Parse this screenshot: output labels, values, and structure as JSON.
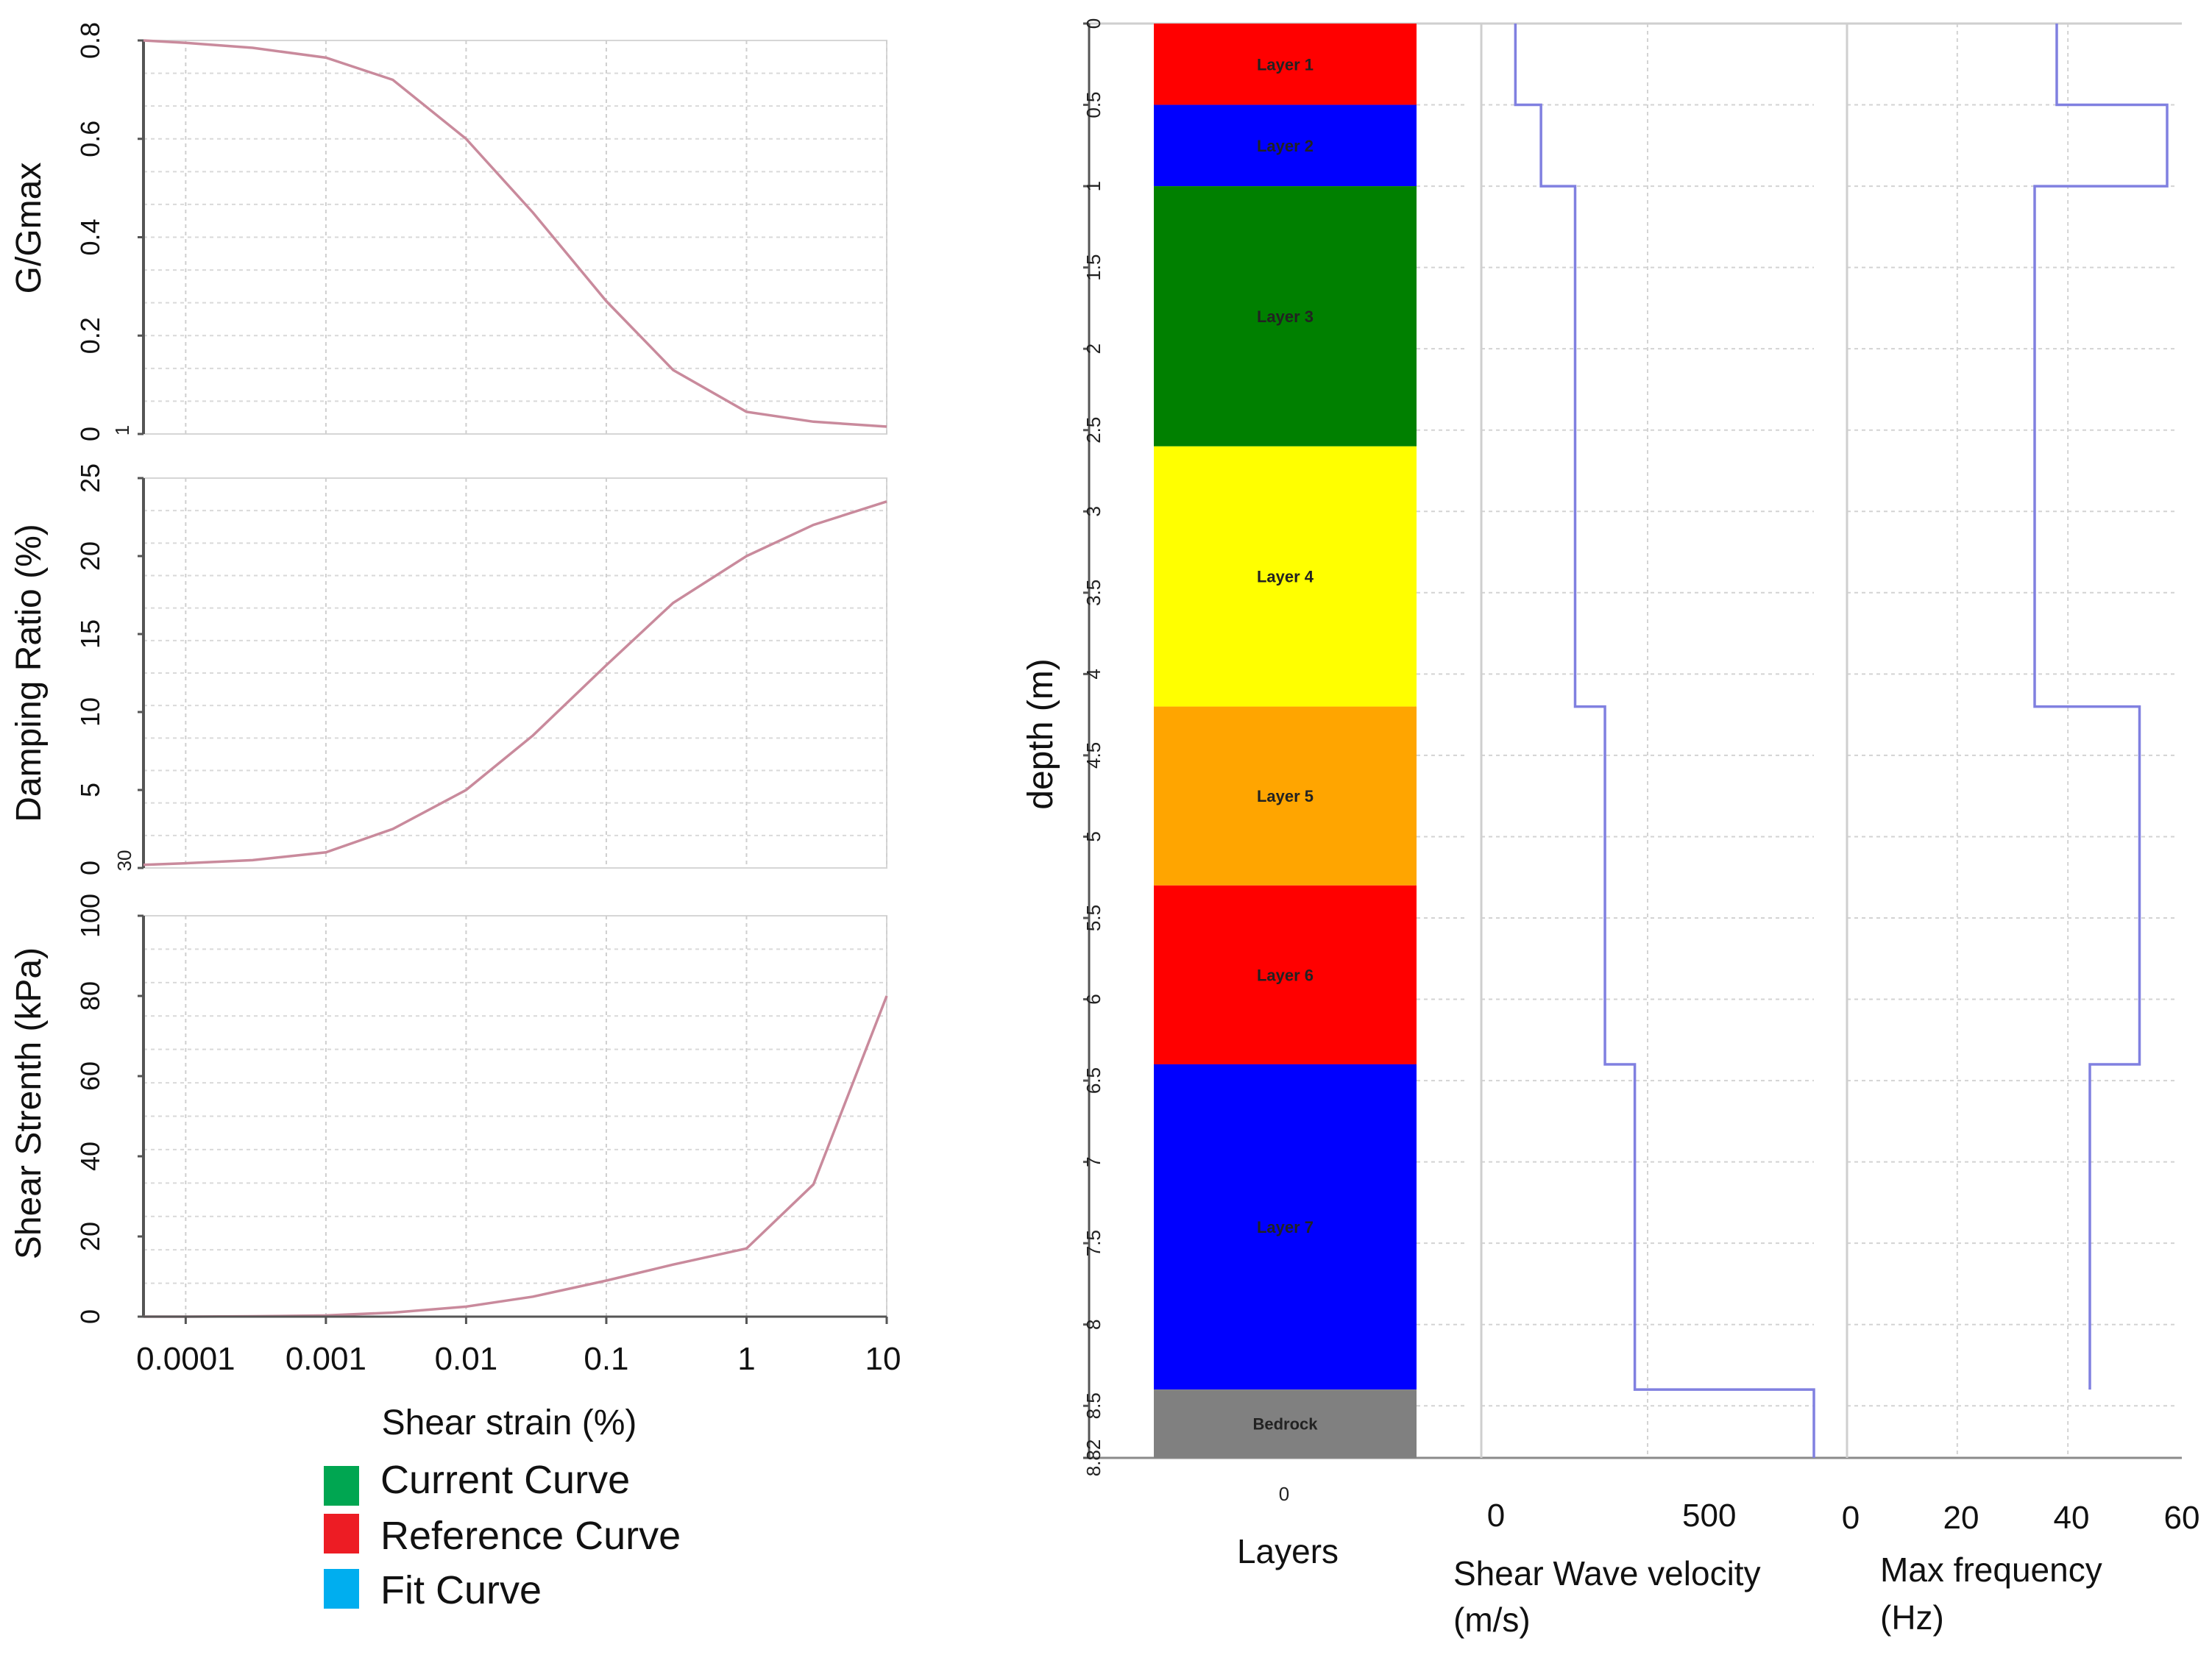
{
  "chart_data": [
    {
      "type": "line",
      "id": "modulus",
      "xscale": "log",
      "xlim": [
        5e-05,
        10
      ],
      "ylim": [
        0,
        0.8
      ],
      "ylabel": "G/Gmax",
      "yticks": [
        "0",
        "0.2",
        "0.4",
        "0.6",
        "0.8"
      ],
      "ytick_values": [
        0,
        0.2,
        0.4,
        0.6,
        0.8
      ],
      "extra_label": "1",
      "line_color": "#c98a9c",
      "x": [
        5e-05,
        0.0001,
        0.0003,
        0.001,
        0.003,
        0.01,
        0.03,
        0.1,
        0.3,
        1,
        3,
        10
      ],
      "y": [
        0.8,
        0.795,
        0.785,
        0.765,
        0.72,
        0.6,
        0.45,
        0.27,
        0.13,
        0.045,
        0.025,
        0.015
      ]
    },
    {
      "type": "line",
      "id": "damping",
      "xscale": "log",
      "xlim": [
        5e-05,
        10
      ],
      "ylim": [
        0,
        25
      ],
      "ylabel": "Damping Ratio (%)",
      "yticks": [
        "0",
        "5",
        "10",
        "15",
        "20",
        "25"
      ],
      "ytick_values": [
        0,
        5,
        10,
        15,
        20,
        25
      ],
      "extra_label": "30",
      "line_color": "#c98a9c",
      "x": [
        5e-05,
        0.0001,
        0.0003,
        0.001,
        0.003,
        0.01,
        0.03,
        0.1,
        0.3,
        1,
        3,
        10
      ],
      "y": [
        0.2,
        0.3,
        0.5,
        1.0,
        2.5,
        5.0,
        8.5,
        13.0,
        17.0,
        20.0,
        22.0,
        23.5
      ]
    },
    {
      "type": "line",
      "id": "strength",
      "xscale": "log",
      "xlim": [
        5e-05,
        10
      ],
      "ylim": [
        0,
        100
      ],
      "ylabel": "Shear Strenth (kPa)",
      "yticks": [
        "0",
        "20",
        "40",
        "60",
        "80",
        "100"
      ],
      "ytick_values": [
        0,
        20,
        40,
        60,
        80,
        100
      ],
      "line_color": "#c98a9c",
      "x": [
        5e-05,
        0.0001,
        0.0003,
        0.001,
        0.003,
        0.01,
        0.03,
        0.1,
        0.3,
        1,
        3,
        10
      ],
      "y": [
        0,
        0,
        0.1,
        0.3,
        1.0,
        2.5,
        5.0,
        9.0,
        13.0,
        17.0,
        33.0,
        80.0
      ],
      "xticks": [
        "0.0001",
        "0.001",
        "0.01",
        "0.1",
        "1",
        "10"
      ],
      "xtick_values": [
        0.0001,
        0.001,
        0.01,
        0.1,
        1,
        10
      ],
      "xlabel": "Shear strain (%)"
    },
    {
      "type": "bar",
      "id": "soil-profile",
      "orientation": "stacked-vertical",
      "ylabel": "depth (m)",
      "xlabel": "Layers",
      "xticks": [
        "0"
      ],
      "ylim": [
        0,
        8.82
      ],
      "depth_ticks": [
        "0",
        "0.5",
        "1",
        "1.5",
        "2",
        "2.5",
        "3",
        "3.5",
        "4",
        "4.5",
        "5",
        "5.5",
        "6",
        "6.5",
        "7",
        "7.5",
        "8",
        "8.5",
        "8.82"
      ],
      "depth_tick_values": [
        0,
        0.5,
        1,
        1.5,
        2,
        2.5,
        3,
        3.5,
        4,
        4.5,
        5,
        5.5,
        6,
        6.5,
        7,
        7.5,
        8,
        8.5,
        8.82
      ],
      "layers": [
        {
          "name": "Layer 1",
          "top": 0,
          "bottom": 0.5,
          "color": "#ff0000"
        },
        {
          "name": "Layer 2",
          "top": 0.5,
          "bottom": 1.0,
          "color": "#0000ff"
        },
        {
          "name": "Layer 3",
          "top": 1.0,
          "bottom": 2.6,
          "color": "#008000"
        },
        {
          "name": "Layer 4",
          "top": 2.6,
          "bottom": 4.2,
          "color": "#ffff00"
        },
        {
          "name": "Layer 5",
          "top": 4.2,
          "bottom": 5.3,
          "color": "#ffa500"
        },
        {
          "name": "Layer 6",
          "top": 5.3,
          "bottom": 6.4,
          "color": "#ff0000"
        },
        {
          "name": "Layer 7",
          "top": 6.4,
          "bottom": 8.4,
          "color": "#0000ff"
        },
        {
          "name": "Bedrock",
          "top": 8.4,
          "bottom": 8.82,
          "color": "#808080"
        }
      ]
    },
    {
      "type": "line",
      "id": "shear-wave-velocity",
      "step": true,
      "xlabel": "Shear Wave velocity (m/s)",
      "xlim": [
        0,
        780
      ],
      "xticks": [
        "0",
        "500"
      ],
      "xtick_values": [
        0,
        500
      ],
      "ylim": [
        0,
        8.82
      ],
      "line_color": "#8080e0",
      "depths": [
        0,
        0.5,
        1.0,
        4.2,
        6.4,
        8.4,
        8.82
      ],
      "values": [
        80,
        140,
        220,
        290,
        360,
        780
      ]
    },
    {
      "type": "line",
      "id": "max-frequency",
      "step": true,
      "xlabel": "Max frequency (Hz)",
      "xlim": [
        0,
        60
      ],
      "xticks": [
        "0",
        "20",
        "40",
        "60"
      ],
      "xtick_values": [
        0,
        20,
        40,
        60
      ],
      "ylim": [
        0,
        8.82
      ],
      "line_color": "#8080e0",
      "depths": [
        0,
        0.5,
        1.0,
        4.2,
        6.4,
        8.4
      ],
      "values": [
        38,
        58,
        34,
        53,
        44
      ]
    }
  ],
  "legend": {
    "items": [
      {
        "label": "Current Curve",
        "color": "#00a651"
      },
      {
        "label": "Reference Curve",
        "color": "#ed1c24"
      },
      {
        "label": "Fit Curve",
        "color": "#00aeef"
      }
    ]
  }
}
